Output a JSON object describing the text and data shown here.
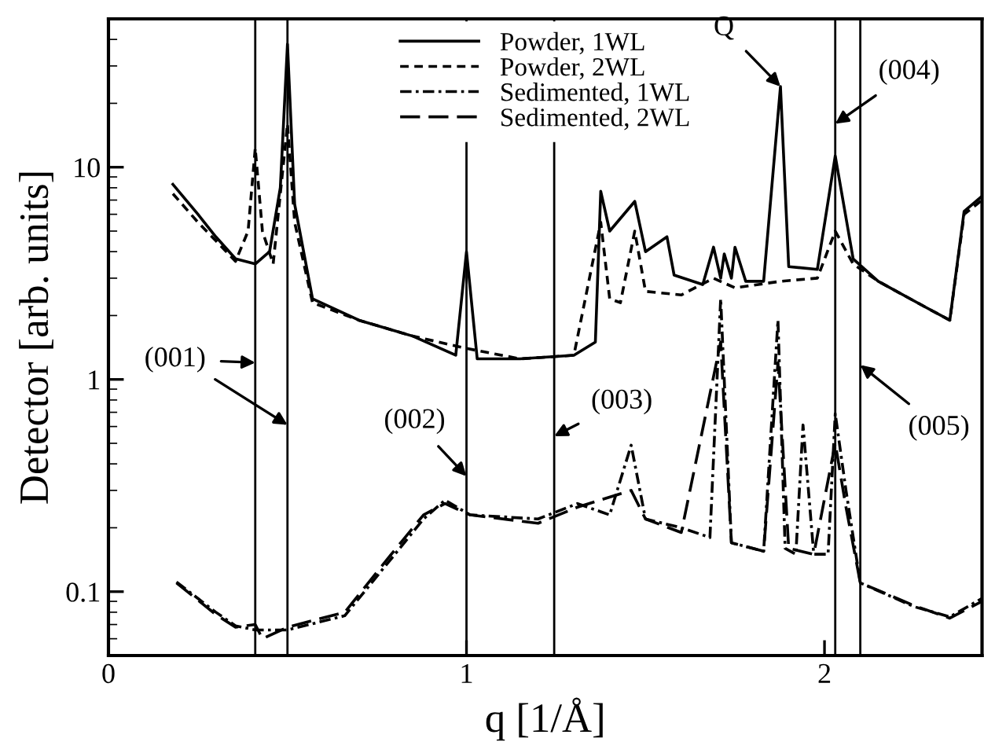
{
  "chart_data": {
    "type": "line",
    "xlabel": "q [1/Å]",
    "ylabel": "Detector [arb. units]",
    "xlim": [
      0,
      2.44
    ],
    "ylim": [
      0.05,
      50
    ],
    "xticks": [
      0,
      1,
      2
    ],
    "yticks": [
      0.1,
      1,
      10
    ],
    "log": true,
    "grid": false,
    "legend": "top",
    "marker": "none",
    "series": [
      {
        "name": "Powder, 1WL",
        "color": "#000000",
        "line_style": "solid",
        "x": [
          0.18,
          0.25,
          0.3,
          0.355,
          0.41,
          0.45,
          0.48,
          0.5,
          0.52,
          0.57,
          0.7,
          0.85,
          0.97,
          1.0,
          1.03,
          1.15,
          1.3,
          1.36,
          1.375,
          1.4,
          1.47,
          1.5,
          1.56,
          1.58,
          1.66,
          1.69,
          1.71,
          1.72,
          1.74,
          1.75,
          1.78,
          1.83,
          1.877,
          1.9,
          1.98,
          2.03,
          2.08,
          2.15,
          2.28,
          2.35,
          2.39,
          2.44
        ],
        "values": [
          8.3,
          6,
          4.7,
          3.7,
          3.5,
          4,
          8,
          38,
          6.7,
          2.4,
          1.9,
          1.6,
          1.3,
          4,
          1.25,
          1.25,
          1.3,
          1.5,
          7.7,
          5.0,
          6.9,
          4.0,
          4.7,
          3.1,
          2.8,
          4.2,
          3.0,
          3.9,
          3.0,
          4.2,
          2.9,
          2.9,
          24,
          3.4,
          3.3,
          11.3,
          3.7,
          2.9,
          2.2,
          1.9,
          6.2,
          7.3
        ]
      },
      {
        "name": "Powder, 2WL",
        "color": "#000000",
        "line_style": "dashed",
        "x": [
          0.18,
          0.25,
          0.3,
          0.355,
          0.39,
          0.41,
          0.43,
          0.46,
          0.5,
          0.52,
          0.57,
          0.7,
          0.85,
          1.0,
          1.15,
          1.3,
          1.375,
          1.4,
          1.43,
          1.47,
          1.5,
          1.6,
          1.69,
          1.75,
          1.877,
          1.98,
          2.03,
          2.08,
          2.15,
          2.28,
          2.35,
          2.39,
          2.44
        ],
        "values": [
          7.5,
          5.5,
          4.5,
          3.6,
          5,
          12.3,
          5,
          3.5,
          16,
          5.5,
          2.3,
          1.9,
          1.6,
          1.4,
          1.25,
          1.3,
          5.5,
          2.4,
          2.3,
          5,
          2.6,
          2.5,
          3.0,
          2.7,
          2.9,
          3.0,
          5,
          3.5,
          2.9,
          2.2,
          1.9,
          6,
          7
        ]
      },
      {
        "name": "Sedimented, 1WL",
        "color": "#000000",
        "line_style": "dashdot",
        "x": [
          0.19,
          0.3,
          0.355,
          0.41,
          0.5,
          0.66,
          0.79,
          0.88,
          0.94,
          1.01,
          1.2,
          1.31,
          1.4,
          1.46,
          1.5,
          1.6,
          1.68,
          1.71,
          1.74,
          1.83,
          1.87,
          1.89,
          1.92,
          1.94,
          1.97,
          2.01,
          2.03,
          2.06,
          2.1,
          2.25,
          2.35,
          2.44
        ],
        "values": [
          0.111,
          0.08,
          0.069,
          0.066,
          0.066,
          0.077,
          0.143,
          0.22,
          0.27,
          0.23,
          0.22,
          0.26,
          0.23,
          0.49,
          0.22,
          0.2,
          0.18,
          2.4,
          0.17,
          0.155,
          1.9,
          0.16,
          0.15,
          0.61,
          0.15,
          0.15,
          0.69,
          0.3,
          0.11,
          0.085,
          0.076,
          0.093
        ]
      },
      {
        "name": "Sedimented, 2WL",
        "color": "#000000",
        "line_style": "longdash",
        "x": [
          0.19,
          0.3,
          0.355,
          0.41,
          0.43,
          0.5,
          0.66,
          0.79,
          0.88,
          0.94,
          1.01,
          1.2,
          1.31,
          1.46,
          1.5,
          1.6,
          1.71,
          1.74,
          1.83,
          1.87,
          1.9,
          1.97,
          2.03,
          2.06,
          2.1,
          2.25,
          2.35,
          2.44
        ],
        "values": [
          0.11,
          0.078,
          0.068,
          0.07,
          0.06,
          0.068,
          0.08,
          0.15,
          0.23,
          0.26,
          0.23,
          0.21,
          0.25,
          0.3,
          0.22,
          0.19,
          1.5,
          0.17,
          0.155,
          1.2,
          0.16,
          0.15,
          0.5,
          0.25,
          0.11,
          0.086,
          0.075,
          0.09
        ]
      }
    ],
    "ref_lines": [
      {
        "axis": "x",
        "value": 0.41,
        "color": "#000000"
      },
      {
        "axis": "x",
        "value": 0.5,
        "color": "#000000"
      },
      {
        "axis": "x",
        "value": 1.0,
        "color": "#000000"
      },
      {
        "axis": "x",
        "value": 1.245,
        "color": "#000000"
      },
      {
        "axis": "x",
        "value": 2.03,
        "color": "#000000"
      },
      {
        "axis": "x",
        "value": 2.1,
        "color": "#000000"
      }
    ],
    "annotations": [
      {
        "text": "(001)",
        "x": 0.41,
        "y": 1.2
      },
      {
        "text": "(002)",
        "x": 1.0,
        "y": 0.35
      },
      {
        "text": "(003)",
        "x": 1.245,
        "y": 0.54
      },
      {
        "text": "Q",
        "x": 1.877,
        "y": 24
      },
      {
        "text": "(004)",
        "x": 2.03,
        "y": 16
      },
      {
        "text": "(005)",
        "x": 2.1,
        "y": 1.17
      }
    ]
  }
}
